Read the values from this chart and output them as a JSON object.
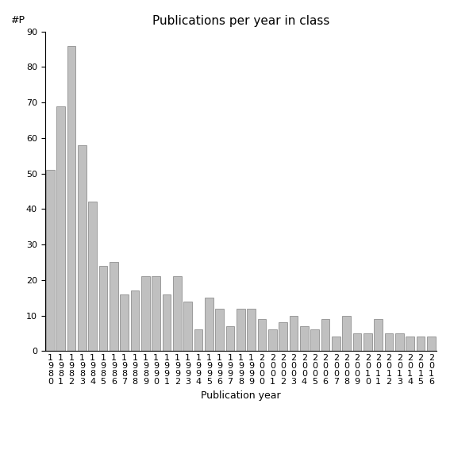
{
  "title": "Publications per year in class",
  "xlabel": "Publication year",
  "ylabel": "#P",
  "ylim": [
    0,
    90
  ],
  "yticks": [
    0,
    10,
    20,
    30,
    40,
    50,
    60,
    70,
    80,
    90
  ],
  "categories": [
    "1\n9\n8\n0",
    "1\n9\n8\n1",
    "1\n9\n8\n2",
    "1\n9\n8\n3",
    "1\n9\n8\n4",
    "1\n9\n8\n5",
    "1\n9\n8\n6",
    "1\n9\n8\n7",
    "1\n9\n8\n8",
    "1\n9\n8\n9",
    "1\n9\n9\n0",
    "1\n9\n9\n1",
    "1\n9\n9\n2",
    "1\n9\n9\n3",
    "1\n9\n9\n4",
    "1\n9\n9\n5",
    "1\n9\n9\n6",
    "1\n9\n9\n7",
    "1\n9\n9\n8",
    "1\n9\n9\n9",
    "2\n0\n0\n0",
    "2\n0\n0\n1",
    "2\n0\n0\n2",
    "2\n0\n0\n3",
    "2\n0\n0\n4",
    "2\n0\n0\n5",
    "2\n0\n0\n6",
    "2\n0\n0\n7",
    "2\n0\n0\n8",
    "2\n0\n0\n9",
    "2\n0\n1\n0",
    "2\n0\n1\n1",
    "2\n0\n1\n2",
    "2\n0\n1\n3",
    "2\n0\n1\n4",
    "2\n0\n1\n5",
    "2\n0\n1\n6"
  ],
  "values": [
    51,
    69,
    86,
    58,
    42,
    24,
    25,
    16,
    17,
    21,
    21,
    16,
    21,
    14,
    6,
    15,
    12,
    7,
    12,
    12,
    9,
    6,
    8,
    10,
    7,
    6,
    9,
    4,
    10,
    5,
    5,
    9,
    5,
    5,
    4,
    4,
    4
  ],
  "bar_color": "#c0c0c0",
  "bar_edgecolor": "#808080",
  "background_color": "#ffffff",
  "title_fontsize": 11,
  "axis_fontsize": 9,
  "tick_fontsize": 8,
  "ylabel_fontsize": 9
}
